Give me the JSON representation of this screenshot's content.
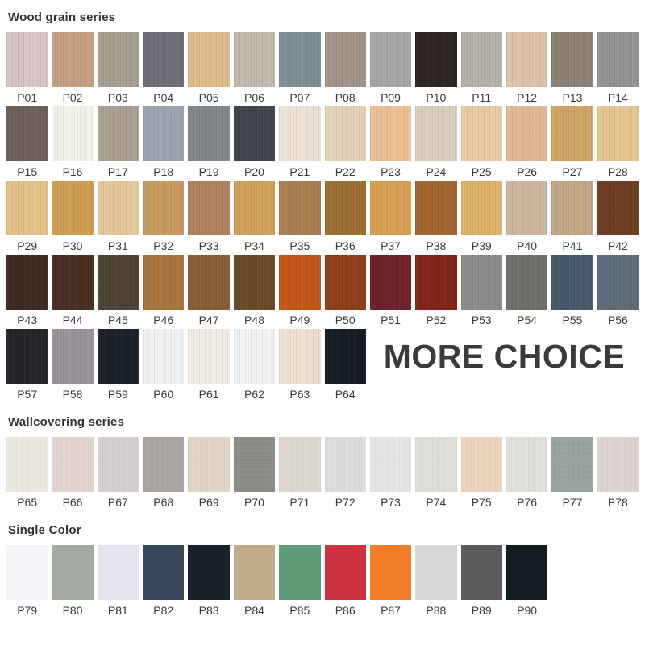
{
  "page": {
    "background": "#ffffff",
    "label_color": "#3b3b3b",
    "title_color": "#333333"
  },
  "more_choice_label": "MORE CHOICE",
  "sections": [
    {
      "title": "Wood grain series",
      "texture": "wood",
      "swatches": [
        {
          "label": "P01",
          "color": "#d8c3c5"
        },
        {
          "label": "P02",
          "color": "#c79f81"
        },
        {
          "label": "P03",
          "color": "#a7a093"
        },
        {
          "label": "P04",
          "color": "#6e6f77"
        },
        {
          "label": "P05",
          "color": "#dfbc8b"
        },
        {
          "label": "P06",
          "color": "#c1b9ad"
        },
        {
          "label": "P07",
          "color": "#7e8e95"
        },
        {
          "label": "P08",
          "color": "#a3958a"
        },
        {
          "label": "P09",
          "color": "#a4a7a6"
        },
        {
          "label": "P10",
          "color": "#2e2624"
        },
        {
          "label": "P11",
          "color": "#b4b1a8"
        },
        {
          "label": "P12",
          "color": "#dcc2a9"
        },
        {
          "label": "P13",
          "color": "#8d8177"
        },
        {
          "label": "P14",
          "color": "#919490"
        },
        {
          "label": "P15",
          "color": "#6f6159"
        },
        {
          "label": "P16",
          "color": "#f1f2e8"
        },
        {
          "label": "P17",
          "color": "#aba093"
        },
        {
          "label": "P18",
          "color": "#9aa3b0"
        },
        {
          "label": "P19",
          "color": "#83888e"
        },
        {
          "label": "P20",
          "color": "#40464e"
        },
        {
          "label": "P21",
          "color": "#ece1d4"
        },
        {
          "label": "P22",
          "color": "#e3d2b7"
        },
        {
          "label": "P23",
          "color": "#ecc095"
        },
        {
          "label": "P24",
          "color": "#d9cebb"
        },
        {
          "label": "P25",
          "color": "#e8caa5"
        },
        {
          "label": "P26",
          "color": "#e0b896"
        },
        {
          "label": "P27",
          "color": "#d0a566"
        },
        {
          "label": "P28",
          "color": "#e4c791"
        },
        {
          "label": "P29",
          "color": "#e3c189"
        },
        {
          "label": "P30",
          "color": "#cf9e55"
        },
        {
          "label": "P31",
          "color": "#e5c79a"
        },
        {
          "label": "P32",
          "color": "#c89a5e"
        },
        {
          "label": "P33",
          "color": "#b08262"
        },
        {
          "label": "P34",
          "color": "#d1a05c"
        },
        {
          "label": "P35",
          "color": "#a87f52"
        },
        {
          "label": "P36",
          "color": "#9c6f33"
        },
        {
          "label": "P37",
          "color": "#d79f50"
        },
        {
          "label": "P38",
          "color": "#a5672f"
        },
        {
          "label": "P39",
          "color": "#dfb269"
        },
        {
          "label": "P40",
          "color": "#cbb59e"
        },
        {
          "label": "P41",
          "color": "#c3a988"
        },
        {
          "label": "P42",
          "color": "#6f3d22"
        },
        {
          "label": "P43",
          "color": "#3e2a20"
        },
        {
          "label": "P44",
          "color": "#4a3023"
        },
        {
          "label": "P45",
          "color": "#4f4236"
        },
        {
          "label": "P46",
          "color": "#a5753d"
        },
        {
          "label": "P47",
          "color": "#8a5f35"
        },
        {
          "label": "P48",
          "color": "#6b4a2c"
        },
        {
          "label": "P49",
          "color": "#c2571a"
        },
        {
          "label": "P50",
          "color": "#8f3f1a"
        },
        {
          "label": "P51",
          "color": "#6e222a"
        },
        {
          "label": "P52",
          "color": "#822518"
        },
        {
          "label": "P53",
          "color": "#8a8d89"
        },
        {
          "label": "P54",
          "color": "#6e706c"
        },
        {
          "label": "P55",
          "color": "#44596a"
        },
        {
          "label": "P56",
          "color": "#5e6b78"
        },
        {
          "label": "P57",
          "color": "#24252b"
        },
        {
          "label": "P58",
          "color": "#9b939c"
        },
        {
          "label": "P59",
          "color": "#1c222b"
        },
        {
          "label": "P60",
          "color": "#eef0f2"
        },
        {
          "label": "P61",
          "color": "#f2ece6"
        },
        {
          "label": "P62",
          "color": "#f0f1f3"
        },
        {
          "label": "P63",
          "color": "#eee0d0"
        },
        {
          "label": "P64",
          "color": "#161c24"
        }
      ]
    },
    {
      "title": "Wallcovering series",
      "texture": "fabric",
      "swatches": [
        {
          "label": "P65",
          "color": "#ebe9dd"
        },
        {
          "label": "P66",
          "color": "#e4d4d0"
        },
        {
          "label": "P67",
          "color": "#d4cfd2"
        },
        {
          "label": "P68",
          "color": "#a9a5a0"
        },
        {
          "label": "P69",
          "color": "#e0d5c6"
        },
        {
          "label": "P70",
          "color": "#8c8a87"
        },
        {
          "label": "P71",
          "color": "#ddd9cf"
        },
        {
          "label": "P72",
          "color": "#dfdcdd"
        },
        {
          "label": "P73",
          "color": "#e4e5e4"
        },
        {
          "label": "P74",
          "color": "#dcdfda"
        },
        {
          "label": "P75",
          "color": "#ecd4bc"
        },
        {
          "label": "P76",
          "color": "#dee1dc"
        },
        {
          "label": "P77",
          "color": "#9aa49e"
        },
        {
          "label": "P78",
          "color": "#ddd4d0"
        }
      ]
    },
    {
      "title": "Single Color",
      "texture": "flat",
      "swatches": [
        {
          "label": "P79",
          "color": "#f4f3f7"
        },
        {
          "label": "P80",
          "color": "#a4aba5"
        },
        {
          "label": "P81",
          "color": "#e4e3ef"
        },
        {
          "label": "P82",
          "color": "#37485a"
        },
        {
          "label": "P83",
          "color": "#1a2229"
        },
        {
          "label": "P84",
          "color": "#c2ab8b"
        },
        {
          "label": "P85",
          "color": "#5f9b78"
        },
        {
          "label": "P86",
          "color": "#cc3240"
        },
        {
          "label": "P87",
          "color": "#f47e28"
        },
        {
          "label": "P88",
          "color": "#d9d8d6"
        },
        {
          "label": "P89",
          "color": "#5a5c5e"
        },
        {
          "label": "P90",
          "color": "#131c21"
        }
      ]
    }
  ]
}
